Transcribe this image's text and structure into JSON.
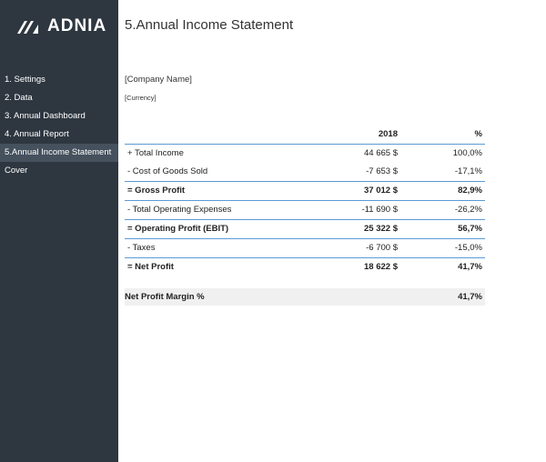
{
  "header": {
    "logo": "ADNIA",
    "title": "5.Annual Income Statement"
  },
  "menu": {
    "items": [
      "1. Settings",
      "2. Data",
      "3. Annual Dashboard",
      "4. Annual Report",
      "5.Annual Income Statement",
      "Cover"
    ],
    "active": 4
  },
  "company": "[Company Name]",
  "currency": "[Currency]",
  "table": {
    "year": "2018",
    "percent": "%",
    "rows": [
      {
        "label": "+ Total Income",
        "amount": "44 665 $",
        "percent": "100,0%",
        "bold": false
      },
      {
        "label": "- Cost of Goods Sold",
        "amount": "-7 653 $",
        "percent": "-17,1%",
        "bold": false
      },
      {
        "label": "= Gross Profit",
        "amount": "37 012 $",
        "percent": "82,9%",
        "bold": true
      },
      {
        "label": "- Total Operating Expenses",
        "amount": "-11 690 $",
        "percent": "-26,2%",
        "bold": false
      },
      {
        "label": "= Operating Profit (EBIT)",
        "amount": "25 322 $",
        "percent": "56,7%",
        "bold": true
      },
      {
        "label": "- Taxes",
        "amount": "-6 700 $",
        "percent": "-15,0%",
        "bold": false
      },
      {
        "label": "= Net Profit",
        "amount": "18 622 $",
        "percent": "41,7%",
        "bold": true
      }
    ]
  },
  "margin": {
    "label": "Net Profit Margin %",
    "value": "41,7%"
  }
}
